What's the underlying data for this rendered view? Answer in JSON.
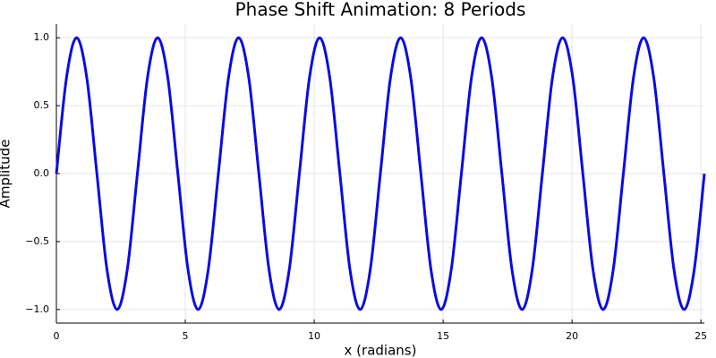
{
  "chart_data": {
    "type": "line",
    "title": "Phase Shift Animation: 8 Periods",
    "x_label": "x (radians)",
    "y_label": "Amplitude",
    "color": "#0a0ae6",
    "grid": true,
    "x": [
      0,
      0.393,
      0.785,
      1.178,
      1.571,
      1.963,
      2.356,
      2.749,
      3.142,
      3.534,
      3.927,
      4.32,
      4.712,
      5.105,
      5.498,
      5.89,
      6.283,
      6.676,
      7.069,
      7.461,
      7.854,
      8.247,
      8.639,
      9.032,
      9.425,
      9.817,
      10.21,
      10.603,
      10.996,
      11.388,
      11.781,
      12.174,
      12.566,
      12.959,
      13.352,
      13.744,
      14.137,
      14.53,
      14.923,
      15.315,
      15.708,
      16.101,
      16.493,
      16.886,
      17.279,
      17.671,
      18.064,
      18.457,
      18.85,
      19.242,
      19.635,
      20.028,
      20.42,
      20.813,
      21.206,
      21.598,
      21.991,
      22.384,
      22.777,
      23.169,
      23.562,
      23.955,
      24.347,
      24.74,
      25.133
    ],
    "values": [
      0,
      0.707,
      1,
      0.707,
      0,
      -0.707,
      -1,
      -0.707,
      0,
      0.707,
      1,
      0.707,
      0,
      -0.707,
      -1,
      -0.707,
      0,
      0.707,
      1,
      0.707,
      0,
      -0.707,
      -1,
      -0.707,
      0,
      0.707,
      1,
      0.707,
      0,
      -0.707,
      -1,
      -0.707,
      0,
      0.707,
      1,
      0.707,
      0,
      -0.707,
      -1,
      -0.707,
      0,
      0.707,
      1,
      0.707,
      0,
      -0.707,
      -1,
      -0.707,
      0,
      0.707,
      1,
      0.707,
      0,
      -0.707,
      -1,
      -0.707,
      0,
      0.707,
      1,
      0.707,
      0,
      -0.707,
      -1,
      -0.707,
      0
    ],
    "xlim": [
      0,
      25.133
    ],
    "ylim": [
      -1.1,
      1.1
    ],
    "xticks": [
      0,
      5,
      10,
      15,
      20,
      25
    ],
    "yticks": [
      {
        "value": -1,
        "label": "−1.0"
      },
      {
        "value": -0.5,
        "label": "−0.5"
      },
      {
        "value": 0,
        "label": "0.0"
      },
      {
        "value": 0.5,
        "label": "0.5"
      },
      {
        "value": 1,
        "label": "1.0"
      }
    ]
  }
}
